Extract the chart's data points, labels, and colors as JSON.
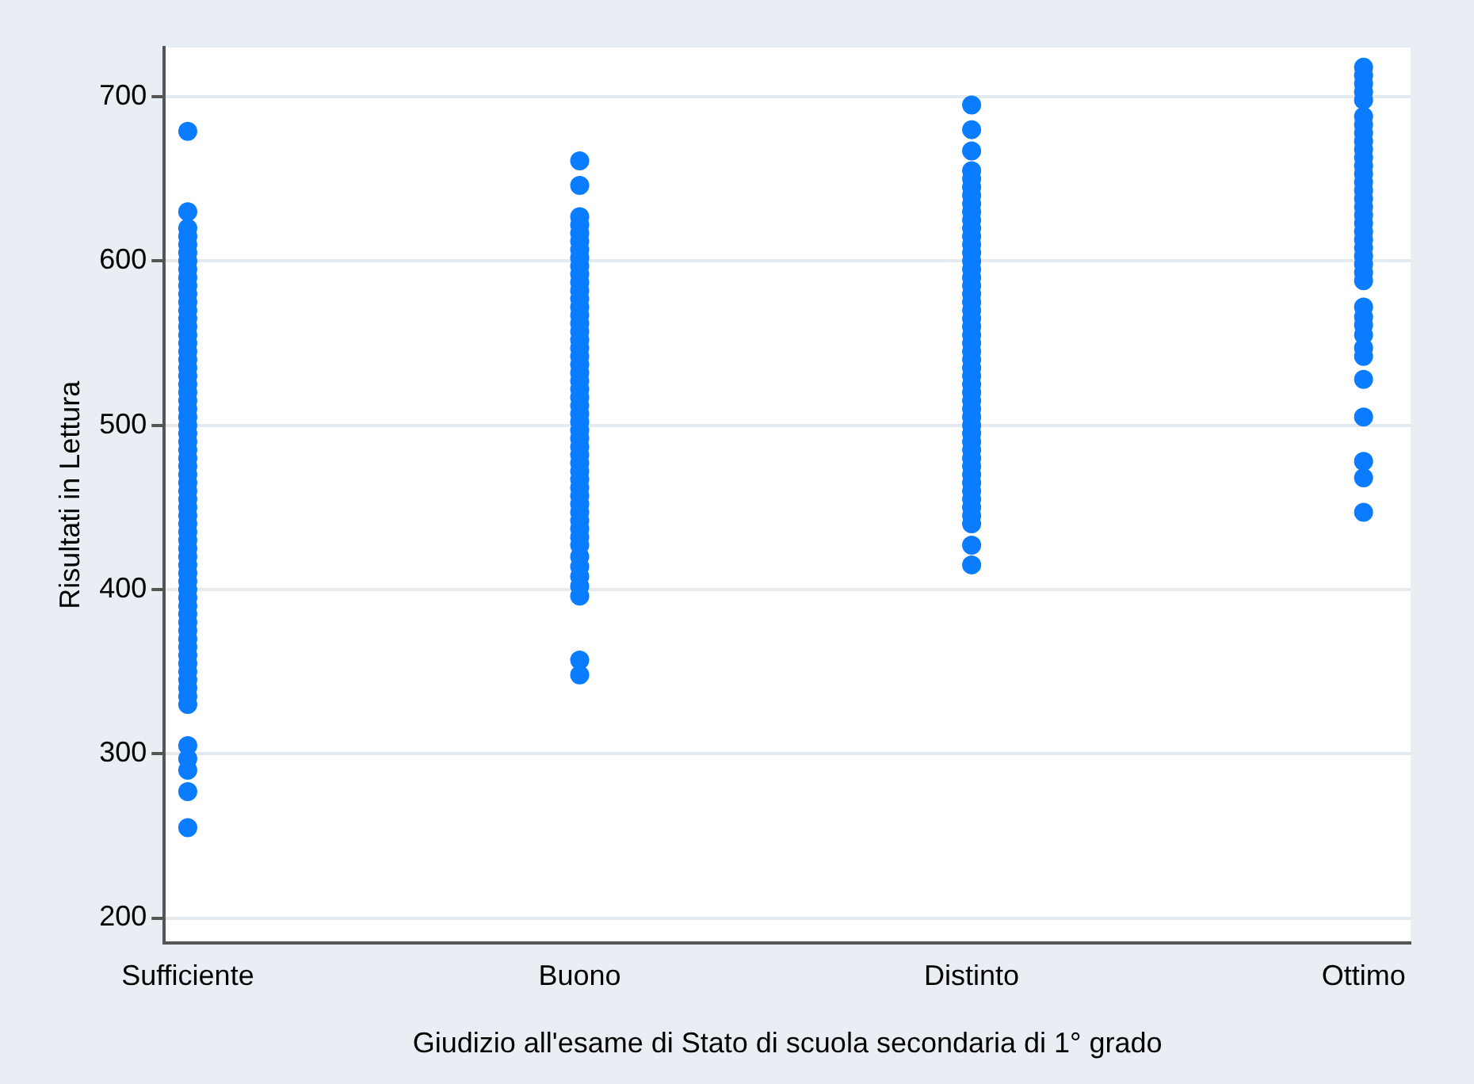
{
  "chart_data": {
    "type": "scatter",
    "xlabel": "Giudizio all'esame di Stato di scuola secondaria di 1° grado",
    "ylabel": "Risultati in Lettura",
    "categories": [
      "Sufficiente",
      "Buono",
      "Distinto",
      "Ottimo"
    ],
    "series": [
      {
        "color": "#0a7cff",
        "x": [
          "Sufficiente",
          "Sufficiente",
          "Sufficiente",
          "Sufficiente",
          "Sufficiente",
          "Sufficiente",
          "Sufficiente",
          "Sufficiente",
          "Sufficiente",
          "Sufficiente",
          "Sufficiente",
          "Sufficiente",
          "Sufficiente",
          "Sufficiente",
          "Sufficiente",
          "Sufficiente",
          "Sufficiente",
          "Sufficiente",
          "Sufficiente",
          "Sufficiente",
          "Sufficiente",
          "Sufficiente",
          "Sufficiente",
          "Sufficiente",
          "Sufficiente",
          "Sufficiente",
          "Sufficiente",
          "Sufficiente",
          "Sufficiente",
          "Sufficiente",
          "Sufficiente",
          "Sufficiente",
          "Sufficiente",
          "Sufficiente",
          "Sufficiente",
          "Sufficiente",
          "Sufficiente",
          "Sufficiente",
          "Sufficiente",
          "Sufficiente",
          "Sufficiente",
          "Sufficiente",
          "Sufficiente",
          "Sufficiente",
          "Sufficiente",
          "Sufficiente",
          "Sufficiente",
          "Sufficiente",
          "Sufficiente",
          "Sufficiente",
          "Sufficiente",
          "Sufficiente",
          "Sufficiente",
          "Sufficiente",
          "Sufficiente",
          "Sufficiente",
          "Sufficiente",
          "Sufficiente",
          "Sufficiente",
          "Sufficiente",
          "Sufficiente",
          "Sufficiente",
          "Sufficiente",
          "Sufficiente",
          "Sufficiente",
          "Sufficiente"
        ],
        "values": [
          679,
          630,
          620,
          615,
          610,
          605,
          600,
          595,
          590,
          585,
          580,
          575,
          570,
          565,
          560,
          555,
          550,
          545,
          540,
          535,
          530,
          525,
          520,
          515,
          510,
          505,
          500,
          495,
          490,
          485,
          480,
          475,
          470,
          465,
          460,
          455,
          450,
          445,
          440,
          435,
          430,
          425,
          420,
          415,
          410,
          405,
          400,
          395,
          390,
          385,
          380,
          375,
          370,
          365,
          360,
          355,
          350,
          345,
          340,
          335,
          330,
          305,
          297,
          290,
          277,
          255
        ]
      },
      {
        "color": "#0a7cff",
        "x": [
          "Buono",
          "Buono",
          "Buono",
          "Buono",
          "Buono",
          "Buono",
          "Buono",
          "Buono",
          "Buono",
          "Buono",
          "Buono",
          "Buono",
          "Buono",
          "Buono",
          "Buono",
          "Buono",
          "Buono",
          "Buono",
          "Buono",
          "Buono",
          "Buono",
          "Buono",
          "Buono",
          "Buono",
          "Buono",
          "Buono",
          "Buono",
          "Buono",
          "Buono",
          "Buono",
          "Buono",
          "Buono",
          "Buono",
          "Buono",
          "Buono",
          "Buono",
          "Buono",
          "Buono",
          "Buono",
          "Buono",
          "Buono",
          "Buono",
          "Buono",
          "Buono",
          "Buono",
          "Buono",
          "Buono",
          "Buono",
          "Buono",
          "Buono",
          "Buono"
        ],
        "values": [
          661,
          null,
          646,
          627,
          622,
          617,
          612,
          607,
          602,
          597,
          592,
          587,
          582,
          577,
          572,
          567,
          562,
          557,
          552,
          547,
          542,
          537,
          532,
          527,
          522,
          517,
          512,
          507,
          502,
          497,
          492,
          487,
          482,
          477,
          472,
          467,
          462,
          457,
          452,
          447,
          442,
          437,
          432,
          427,
          420,
          414,
          408,
          402,
          396,
          357,
          348
        ]
      },
      {
        "color": "#0a7cff",
        "x": [
          "Distinto",
          "Distinto",
          "Distinto",
          "Distinto",
          "Distinto",
          "Distinto",
          "Distinto",
          "Distinto",
          "Distinto",
          "Distinto",
          "Distinto",
          "Distinto",
          "Distinto",
          "Distinto",
          "Distinto",
          "Distinto",
          "Distinto",
          "Distinto",
          "Distinto",
          "Distinto",
          "Distinto",
          "Distinto",
          "Distinto",
          "Distinto",
          "Distinto",
          "Distinto",
          "Distinto",
          "Distinto",
          "Distinto",
          "Distinto",
          "Distinto",
          "Distinto",
          "Distinto",
          "Distinto",
          "Distinto",
          "Distinto",
          "Distinto",
          "Distinto",
          "Distinto",
          "Distinto",
          "Distinto",
          "Distinto",
          "Distinto",
          "Distinto",
          "Distinto",
          "Distinto",
          "Distinto",
          "Distinto",
          "Distinto"
        ],
        "values": [
          695,
          680,
          667,
          655,
          650,
          645,
          640,
          635,
          630,
          625,
          620,
          615,
          610,
          605,
          600,
          595,
          590,
          585,
          580,
          575,
          570,
          565,
          560,
          555,
          550,
          545,
          540,
          535,
          530,
          525,
          520,
          515,
          510,
          505,
          500,
          495,
          490,
          485,
          480,
          475,
          470,
          465,
          460,
          455,
          450,
          445,
          440,
          427,
          415
        ]
      },
      {
        "color": "#0a7cff",
        "x": [
          "Ottimo",
          "Ottimo",
          "Ottimo",
          "Ottimo",
          "Ottimo",
          "Ottimo",
          "Ottimo",
          "Ottimo",
          "Ottimo",
          "Ottimo",
          "Ottimo",
          "Ottimo",
          "Ottimo",
          "Ottimo",
          "Ottimo",
          "Ottimo",
          "Ottimo",
          "Ottimo",
          "Ottimo",
          "Ottimo",
          "Ottimo",
          "Ottimo",
          "Ottimo",
          "Ottimo",
          "Ottimo",
          "Ottimo",
          "Ottimo",
          "Ottimo",
          "Ottimo",
          "Ottimo",
          "Ottimo",
          "Ottimo",
          "Ottimo",
          "Ottimo",
          "Ottimo",
          "Ottimo",
          "Ottimo"
        ],
        "values": [
          718,
          713,
          708,
          703,
          698,
          688,
          683,
          678,
          673,
          668,
          663,
          658,
          653,
          648,
          643,
          638,
          633,
          628,
          623,
          618,
          613,
          608,
          603,
          598,
          593,
          588,
          572,
          566,
          561,
          555,
          547,
          542,
          528,
          505,
          478,
          468,
          447
        ]
      }
    ],
    "ylim": [
      185,
      730
    ],
    "yticks": [
      200,
      300,
      400,
      500,
      600,
      700
    ],
    "grid": "y",
    "marker": "circle",
    "legend": false
  }
}
